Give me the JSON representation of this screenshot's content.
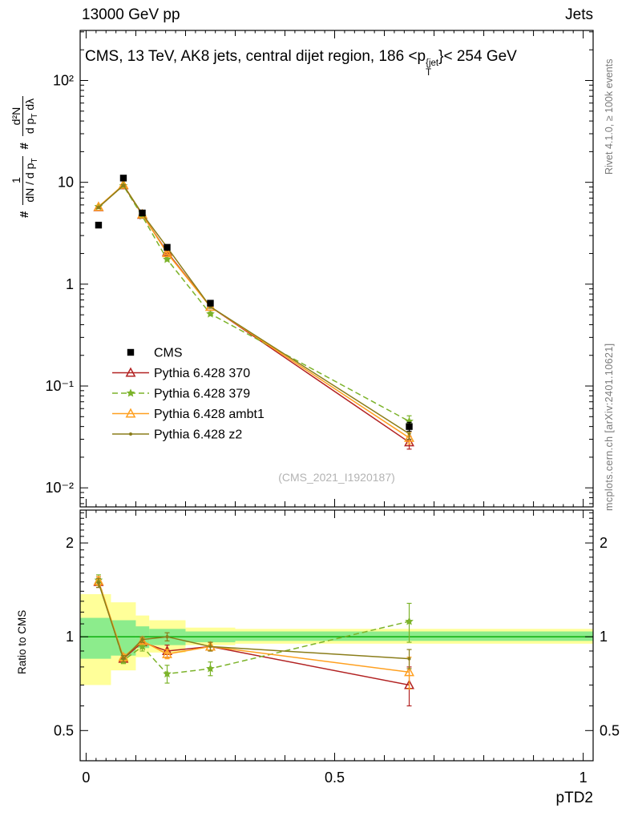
{
  "header": {
    "left": "13000 GeV pp",
    "right": "Jets"
  },
  "title": {
    "pre": "CMS, 13 TeV, AK8 jets, central dijet region, 186 <p",
    "sup": "{jet",
    "sub": "T",
    "post": "}< 254 GeV"
  },
  "watermark": "(CMS_2021_I1920187)",
  "side": {
    "rivet": "Rivet 4.1.0, ≥ 100k events",
    "mcplots": "mcplots.cern.ch [arXiv:2401.10621]"
  },
  "ylabel_main": {
    "hash1": "#",
    "num1": "1",
    "den1a": "dN / d p",
    "den1b": "T",
    "hash2": "#",
    "num2": "d²N",
    "den2a": "d p",
    "den2b": "T",
    "den2c": " dλ"
  },
  "axes": {
    "x": {
      "label": "pTD2",
      "tick_values": [
        0,
        0.5,
        1
      ],
      "tick_labels": [
        "0",
        "0.5",
        "1"
      ]
    },
    "y_main": {
      "tick_values": [
        100,
        10,
        1,
        0.1,
        0.01
      ],
      "tick_labels": [
        "10²",
        "10",
        "1",
        "10⁻¹",
        "10⁻²"
      ]
    },
    "y_ratio": {
      "label": "Ratio to CMS",
      "tick_values": [
        2,
        1,
        0.5
      ],
      "tick_labels": [
        "2",
        "1",
        "0.5"
      ]
    }
  },
  "chart_data": [
    {
      "type": "line",
      "panel": "main",
      "title": "CMS, 13 TeV, AK8 jets, central dijet region, 186 < pT{jet} < 254 GeV",
      "xlabel": "pTD2",
      "ylabel": "# 1/(dN/dpT) # d²N/(dpT dλ)",
      "yscale": "log",
      "xlim": [
        -0.012,
        1.02
      ],
      "ylim": [
        0.0065,
        310
      ],
      "x": [
        0.025,
        0.075,
        0.113,
        0.163,
        0.25,
        0.65
      ],
      "series": [
        {
          "name": "CMS",
          "color": "#000000",
          "marker": "square",
          "line": "none",
          "values": [
            3.8,
            11.0,
            5.0,
            2.3,
            0.65,
            0.04
          ],
          "yerr": [
            0.15,
            0.3,
            0.15,
            0.07,
            0.025,
            0.004
          ]
        },
        {
          "name": "Pythia 6.428 370",
          "color": "#b22222",
          "marker": "triangle",
          "line": "solid",
          "values": [
            5.7,
            9.35,
            4.8,
            2.07,
            0.6,
            0.028
          ],
          "yerr": [
            0.12,
            0.15,
            0.1,
            0.06,
            0.02,
            0.004
          ]
        },
        {
          "name": "Pythia 6.428 379",
          "color": "#7cb32a",
          "marker": "star",
          "line": "dashed",
          "values": [
            5.78,
            9.24,
            4.65,
            1.75,
            0.51,
            0.045
          ],
          "yerr": [
            0.12,
            0.15,
            0.1,
            0.06,
            0.02,
            0.006
          ]
        },
        {
          "name": "Pythia 6.428 ambt1",
          "color": "#ffa020",
          "marker": "triangle",
          "line": "solid",
          "values": [
            5.74,
            9.46,
            4.85,
            2.02,
            0.6,
            0.031
          ],
          "yerr": [
            0.12,
            0.15,
            0.1,
            0.06,
            0.02,
            0.004
          ]
        },
        {
          "name": "Pythia 6.428 z2",
          "color": "#8a7d1a",
          "marker": "dot",
          "line": "solid",
          "values": [
            5.66,
            9.35,
            4.9,
            2.3,
            0.6,
            0.034
          ],
          "yerr": [
            0.12,
            0.15,
            0.1,
            0.06,
            0.02,
            0.004
          ]
        }
      ]
    },
    {
      "type": "line",
      "panel": "ratio",
      "ylabel": "Ratio to CMS",
      "yscale": "log",
      "xlim": [
        -0.012,
        1.02
      ],
      "ylim": [
        0.4,
        2.55
      ],
      "x": [
        0.025,
        0.075,
        0.113,
        0.163,
        0.25,
        0.65
      ],
      "series": [
        {
          "name": "Pythia 6.428 370",
          "color": "#b22222",
          "marker": "triangle",
          "line": "solid",
          "values": [
            1.5,
            0.85,
            0.96,
            0.9,
            0.93,
            0.7
          ],
          "yerr": [
            0.06,
            0.02,
            0.03,
            0.04,
            0.03,
            0.1
          ]
        },
        {
          "name": "Pythia 6.428 379",
          "color": "#7cb32a",
          "marker": "star",
          "line": "dashed",
          "values": [
            1.52,
            0.84,
            0.93,
            0.76,
            0.79,
            1.12
          ],
          "yerr": [
            0.06,
            0.02,
            0.03,
            0.05,
            0.04,
            0.16
          ]
        },
        {
          "name": "Pythia 6.428 ambt1",
          "color": "#ffa020",
          "marker": "triangle",
          "line": "solid",
          "values": [
            1.51,
            0.86,
            0.97,
            0.88,
            0.93,
            0.77
          ],
          "yerr": [
            0.05,
            0.02,
            0.02,
            0.03,
            0.03,
            0.09
          ]
        },
        {
          "name": "Pythia 6.428 z2",
          "color": "#8a7d1a",
          "marker": "dot",
          "line": "solid",
          "values": [
            1.49,
            0.85,
            0.98,
            1.0,
            0.93,
            0.85
          ],
          "yerr": [
            0.05,
            0.02,
            0.02,
            0.03,
            0.03,
            0.06
          ]
        }
      ],
      "bands": {
        "edges": [
          0,
          0.05,
          0.1,
          0.127,
          0.2,
          0.3,
          1.0
        ],
        "yellow_lo": [
          0.7,
          0.78,
          0.86,
          0.89,
          0.94,
          0.95
        ],
        "yellow_hi": [
          1.37,
          1.29,
          1.17,
          1.13,
          1.07,
          1.06
        ],
        "green_lo": [
          0.85,
          0.87,
          0.92,
          0.94,
          0.96,
          0.97
        ],
        "green_hi": [
          1.15,
          1.13,
          1.08,
          1.06,
          1.04,
          1.04
        ],
        "yellow_color": "#ffff99",
        "green_color": "#8cec8c",
        "refline_color": "#00aa00"
      }
    }
  ]
}
